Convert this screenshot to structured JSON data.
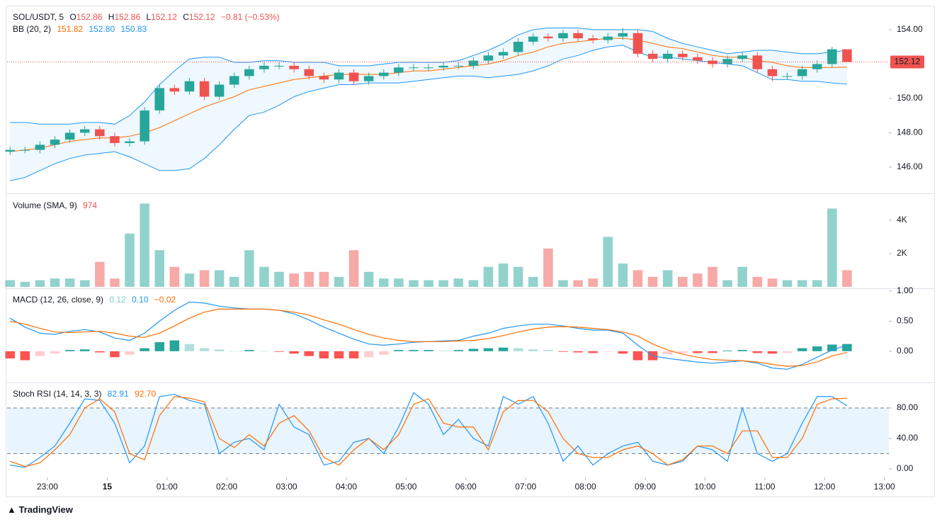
{
  "footer": "TradingView",
  "chart_data": [
    {
      "type": "candlestick",
      "title": "SOL/USDT, 5",
      "ohlc_labels": [
        "O",
        "H",
        "L",
        "C"
      ],
      "change": "−0.81 (−0.53%)",
      "up_color": "#26a69a",
      "down_color": "#ef5350",
      "open": [
        146.9,
        147.0,
        147.0,
        147.3,
        147.6,
        148.0,
        148.2,
        147.8,
        147.4,
        147.5,
        149.3,
        150.6,
        150.4,
        151.0,
        150.1,
        150.8,
        151.3,
        151.7,
        151.9,
        151.9,
        151.7,
        151.3,
        151.1,
        151.5,
        151.0,
        151.3,
        151.5,
        151.8,
        151.8,
        151.8,
        151.9,
        151.9,
        152.2,
        152.5,
        152.7,
        153.3,
        153.6,
        153.5,
        153.8,
        153.5,
        153.4,
        153.6,
        153.8,
        152.6,
        152.3,
        152.6,
        152.4,
        152.2,
        152.0,
        152.3,
        152.5,
        151.7,
        151.3,
        151.3,
        151.7,
        152.0,
        152.86
      ],
      "high": [
        147.2,
        147.2,
        147.5,
        147.8,
        148.2,
        148.4,
        148.4,
        148.0,
        147.7,
        149.5,
        150.8,
        150.8,
        151.2,
        151.2,
        151.0,
        151.5,
        151.9,
        152.1,
        152.1,
        152.1,
        151.9,
        151.5,
        151.7,
        151.7,
        151.5,
        151.7,
        152.0,
        152.0,
        152.0,
        152.1,
        152.1,
        152.4,
        152.7,
        152.9,
        153.5,
        153.8,
        153.8,
        154.0,
        154.0,
        153.7,
        153.8,
        154.1,
        154.0,
        152.8,
        152.8,
        152.8,
        152.6,
        152.4,
        152.5,
        152.7,
        152.7,
        151.9,
        151.5,
        151.9,
        152.2,
        153.0,
        152.86
      ],
      "low": [
        146.7,
        146.8,
        146.8,
        147.1,
        147.4,
        147.8,
        147.6,
        147.2,
        147.2,
        147.3,
        149.1,
        150.2,
        150.2,
        149.9,
        149.9,
        150.6,
        151.1,
        151.5,
        151.7,
        151.5,
        151.1,
        150.9,
        150.9,
        150.8,
        150.8,
        151.1,
        151.3,
        151.6,
        151.6,
        151.6,
        151.7,
        151.7,
        152.0,
        152.3,
        152.5,
        153.1,
        153.3,
        153.3,
        153.3,
        153.2,
        153.2,
        153.4,
        152.4,
        152.1,
        152.1,
        152.2,
        152.0,
        151.8,
        151.8,
        152.1,
        151.5,
        151.0,
        151.1,
        151.1,
        151.5,
        151.8,
        152.12
      ],
      "close": [
        147.0,
        147.0,
        147.3,
        147.6,
        148.0,
        148.2,
        147.8,
        147.4,
        147.5,
        149.3,
        150.6,
        150.4,
        151.0,
        150.1,
        150.8,
        151.3,
        151.7,
        151.9,
        151.9,
        151.7,
        151.3,
        151.1,
        151.5,
        151.0,
        151.3,
        151.5,
        151.8,
        151.8,
        151.8,
        151.9,
        151.9,
        152.2,
        152.5,
        152.7,
        153.3,
        153.6,
        153.5,
        153.8,
        153.5,
        153.4,
        153.6,
        153.8,
        152.6,
        152.3,
        152.6,
        152.4,
        152.2,
        152.0,
        152.3,
        152.5,
        151.7,
        151.3,
        151.3,
        151.7,
        152.0,
        152.86,
        152.12
      ],
      "ylim": [
        144.47,
        155.4
      ],
      "yticks": [
        {
          "value": 146,
          "label": "146.00"
        },
        {
          "value": 148,
          "label": "148.00"
        },
        {
          "value": 150,
          "label": "150.00"
        },
        {
          "value": 152,
          "label": "152.00"
        },
        {
          "value": 154,
          "label": "154.00"
        }
      ],
      "overlay": {
        "name": "BB (20, 2)",
        "fill": "rgba(33,150,243,0.07)",
        "series": [
          {
            "color": "#ff6d00",
            "last_label": "151.82",
            "values": [
              146.9,
              147.0,
              147.1,
              147.3,
              147.5,
              147.6,
              147.7,
              147.7,
              147.8,
              148.0,
              148.3,
              148.7,
              149.1,
              149.5,
              149.8,
              150.1,
              150.5,
              150.7,
              150.9,
              151.1,
              151.2,
              151.3,
              151.4,
              151.4,
              151.4,
              151.4,
              151.5,
              151.6,
              151.6,
              151.7,
              151.8,
              151.9,
              152.0,
              152.2,
              152.5,
              152.7,
              153.0,
              153.2,
              153.3,
              153.4,
              153.5,
              153.5,
              153.4,
              153.2,
              153.0,
              152.9,
              152.7,
              152.5,
              152.4,
              152.4,
              152.2,
              152.1,
              151.9,
              151.8,
              151.8,
              151.8,
              151.82
            ]
          },
          {
            "color": "#2196f3",
            "last_label": "152.80",
            "values": [
              148.6,
              148.6,
              148.5,
              148.5,
              148.5,
              148.6,
              148.6,
              148.5,
              149.0,
              149.8,
              150.8,
              151.6,
              152.3,
              152.4,
              152.4,
              152.1,
              152.1,
              152.2,
              152.2,
              152.1,
              152.1,
              152.1,
              151.9,
              151.9,
              151.9,
              152.0,
              152.1,
              152.1,
              152.1,
              152.1,
              152.2,
              152.5,
              152.8,
              153.2,
              153.7,
              154.0,
              154.1,
              154.1,
              154.1,
              154.0,
              154.0,
              154.0,
              154.0,
              153.9,
              153.5,
              153.2,
              153.0,
              152.8,
              152.6,
              152.7,
              152.8,
              152.8,
              152.7,
              152.6,
              152.6,
              152.7,
              152.8
            ]
          },
          {
            "color": "#2196f3",
            "last_label": "150.83",
            "values": [
              145.2,
              145.4,
              145.8,
              146.2,
              146.5,
              146.7,
              146.8,
              146.9,
              146.6,
              146.2,
              145.8,
              145.8,
              145.9,
              146.5,
              147.3,
              148.2,
              149.0,
              149.2,
              149.6,
              150.1,
              150.4,
              150.6,
              150.8,
              150.8,
              150.9,
              150.9,
              150.9,
              151.0,
              151.1,
              151.2,
              151.3,
              151.3,
              151.2,
              151.3,
              151.4,
              151.6,
              151.9,
              152.3,
              152.5,
              152.8,
              153.0,
              153.1,
              152.7,
              152.4,
              152.4,
              152.3,
              152.2,
              152.1,
              152.0,
              151.9,
              151.5,
              151.1,
              151.1,
              151.0,
              151.0,
              150.9,
              150.83
            ]
          }
        ]
      }
    },
    {
      "type": "bar",
      "title": "Volume (SMA, 9)",
      "sma_value": 974,
      "up_color": "rgba(38,166,154,0.5)",
      "down_color": "rgba(239,83,80,0.5)",
      "values": [
        400,
        300,
        400,
        500,
        500,
        400,
        1500,
        500,
        3200,
        5000,
        2200,
        1200,
        800,
        1000,
        1000,
        600,
        2200,
        1200,
        900,
        800,
        900,
        900,
        600,
        2200,
        900,
        500,
        500,
        400,
        400,
        400,
        500,
        400,
        1200,
        1400,
        1200,
        600,
        2300,
        400,
        400,
        500,
        3000,
        1400,
        1000,
        600,
        1000,
        600,
        800,
        1200,
        400,
        1200,
        600,
        500,
        400,
        400,
        400,
        4700,
        1000
      ],
      "ylim": [
        -85,
        5570
      ],
      "yticks": [
        {
          "value": 2000,
          "label": "2K"
        },
        {
          "value": 4000,
          "label": "4K"
        }
      ]
    },
    {
      "type": "macd",
      "title": "MACD (12, 26, close, 9)",
      "hist_colors": [
        "#26a69a",
        "#b2dfdb",
        "#ff5252",
        "#ffcdd2"
      ],
      "histogram": {
        "last_label": "0.12",
        "values": [
          -0.12,
          -0.15,
          -0.08,
          -0.04,
          0.02,
          0.03,
          -0.02,
          -0.1,
          -0.06,
          0.05,
          0.15,
          0.18,
          0.12,
          0.05,
          0.03,
          0.0,
          0.02,
          0.0,
          -0.01,
          -0.04,
          -0.08,
          -0.12,
          -0.12,
          -0.12,
          -0.1,
          -0.06,
          0.02,
          0.02,
          0.02,
          0.01,
          0.02,
          0.04,
          0.05,
          0.06,
          0.05,
          0.03,
          0.02,
          -0.01,
          -0.02,
          -0.03,
          -0.01,
          -0.04,
          -0.15,
          -0.15,
          -0.05,
          -0.03,
          -0.03,
          -0.03,
          0.01,
          0.02,
          -0.03,
          -0.04,
          -0.03,
          0.05,
          0.08,
          0.11,
          0.12
        ]
      },
      "series": [
        {
          "color": "#2196f3",
          "last_label": "0.10",
          "values": [
            0.55,
            0.4,
            0.3,
            0.28,
            0.33,
            0.36,
            0.32,
            0.22,
            0.18,
            0.3,
            0.5,
            0.68,
            0.82,
            0.8,
            0.75,
            0.72,
            0.7,
            0.7,
            0.68,
            0.62,
            0.52,
            0.4,
            0.3,
            0.2,
            0.12,
            0.1,
            0.12,
            0.15,
            0.16,
            0.17,
            0.18,
            0.25,
            0.3,
            0.38,
            0.42,
            0.45,
            0.45,
            0.42,
            0.38,
            0.35,
            0.35,
            0.3,
            0.1,
            -0.08,
            -0.12,
            -0.15,
            -0.18,
            -0.2,
            -0.18,
            -0.16,
            -0.2,
            -0.28,
            -0.3,
            -0.22,
            -0.1,
            0.02,
            0.1
          ]
        },
        {
          "color": "#ff6d00",
          "last_label": "−0.02",
          "values": [
            0.5,
            0.45,
            0.38,
            0.32,
            0.31,
            0.32,
            0.33,
            0.3,
            0.25,
            0.23,
            0.3,
            0.42,
            0.55,
            0.65,
            0.7,
            0.7,
            0.7,
            0.7,
            0.68,
            0.65,
            0.6,
            0.52,
            0.45,
            0.36,
            0.28,
            0.22,
            0.18,
            0.16,
            0.16,
            0.16,
            0.17,
            0.18,
            0.21,
            0.26,
            0.32,
            0.37,
            0.4,
            0.41,
            0.4,
            0.38,
            0.36,
            0.32,
            0.25,
            0.12,
            0.02,
            -0.05,
            -0.1,
            -0.14,
            -0.15,
            -0.16,
            -0.18,
            -0.22,
            -0.25,
            -0.24,
            -0.18,
            -0.08,
            -0.02
          ]
        }
      ],
      "ylim": [
        -0.52,
        1.035
      ],
      "yticks": [
        {
          "value": 0,
          "label": "0.00"
        },
        {
          "value": 0.5,
          "label": "0.50"
        },
        {
          "value": 1,
          "label": "1.00"
        }
      ]
    },
    {
      "type": "line",
      "title": "Stoch RSI (14, 14, 3, 3)",
      "bands": [
        20,
        80
      ],
      "band_fill": "rgba(33,150,243,0.1)",
      "series": [
        {
          "color": "#2196f3",
          "last_label": "82.91",
          "values": [
            5,
            2,
            15,
            30,
            60,
            92,
            90,
            60,
            8,
            30,
            95,
            98,
            90,
            85,
            20,
            35,
            40,
            25,
            85,
            55,
            45,
            5,
            10,
            35,
            40,
            20,
            55,
            100,
            85,
            45,
            65,
            40,
            30,
            95,
            85,
            95,
            60,
            10,
            30,
            5,
            20,
            30,
            35,
            10,
            5,
            10,
            30,
            25,
            10,
            80,
            20,
            10,
            20,
            60,
            95,
            95,
            82.91
          ]
        },
        {
          "color": "#ff6d00",
          "last_label": "92.70",
          "values": [
            10,
            3,
            8,
            25,
            45,
            80,
            92,
            75,
            20,
            12,
            70,
            95,
            93,
            88,
            40,
            28,
            45,
            30,
            60,
            70,
            50,
            15,
            5,
            25,
            40,
            25,
            45,
            85,
            92,
            60,
            55,
            55,
            25,
            75,
            90,
            90,
            75,
            40,
            20,
            15,
            15,
            25,
            30,
            20,
            5,
            12,
            30,
            30,
            20,
            50,
            50,
            15,
            15,
            40,
            85,
            92,
            92.7
          ]
        }
      ],
      "ylim": [
        -11.2,
        112.6
      ],
      "yticks": [
        {
          "value": 0,
          "label": "0.00"
        },
        {
          "value": 40,
          "label": "40.00"
        },
        {
          "value": 80,
          "label": "80.00"
        }
      ],
      "xlim": [
        -0.2,
        58.8
      ],
      "xticks": [
        {
          "value": 2.5,
          "label": "23:00"
        },
        {
          "value": 6.5,
          "label": "15"
        },
        {
          "value": 10.5,
          "label": "01:00"
        },
        {
          "value": 14.5,
          "label": "02:00"
        },
        {
          "value": 18.5,
          "label": "03:00"
        },
        {
          "value": 22.5,
          "label": "04:00"
        },
        {
          "value": 26.5,
          "label": "05:00"
        },
        {
          "value": 30.5,
          "label": "06:00"
        },
        {
          "value": 34.5,
          "label": "07:00"
        },
        {
          "value": 38.5,
          "label": "08:00"
        },
        {
          "value": 42.5,
          "label": "09:00"
        },
        {
          "value": 46.5,
          "label": "10:00"
        },
        {
          "value": 50.5,
          "label": "11:00"
        },
        {
          "value": 54.5,
          "label": "12:00"
        },
        {
          "value": 58.5,
          "label": "13:00"
        }
      ]
    }
  ]
}
